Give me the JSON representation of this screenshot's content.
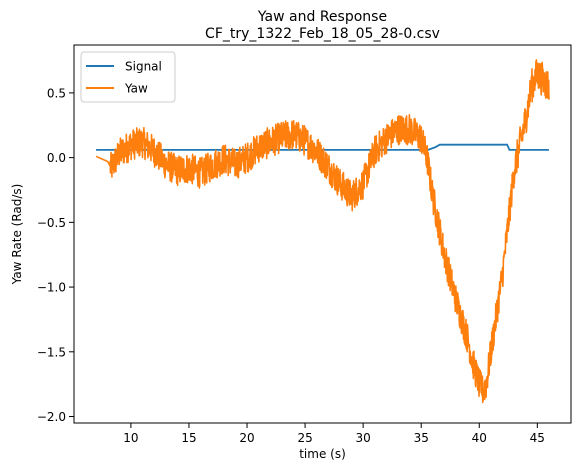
{
  "chart_data": {
    "type": "line",
    "title": "Yaw and Response",
    "subtitle": "CF_try_1322_Feb_18_05_28-0.csv",
    "xlabel": "time (s)",
    "ylabel": "Yaw Rate (Rad/s)",
    "xlim": [
      5.1,
      47.9
    ],
    "ylim": [
      -2.05,
      0.87
    ],
    "xticks": [
      10,
      15,
      20,
      25,
      30,
      35,
      40,
      45
    ],
    "yticks": [
      0.5,
      0.0,
      -0.5,
      -1.0,
      -1.5,
      -2.0
    ],
    "xtick_labels": [
      "10",
      "15",
      "20",
      "25",
      "30",
      "35",
      "40",
      "45"
    ],
    "ytick_labels": [
      "0.5",
      "0.0",
      "−0.5",
      "−1.0",
      "−1.5",
      "−2.0"
    ],
    "legend_position": "top-left",
    "grid": false,
    "series": [
      {
        "name": "Signal",
        "color": "#1f77b4",
        "x": [
          7.0,
          8.0,
          12.0,
          20.0,
          28.0,
          35.0,
          35.6,
          36.2,
          36.6,
          37.0,
          40.0,
          42.4,
          42.6,
          43.0,
          46.0
        ],
        "y": [
          0.06,
          0.06,
          0.06,
          0.06,
          0.06,
          0.06,
          0.06,
          0.08,
          0.1,
          0.1,
          0.1,
          0.1,
          0.06,
          0.06,
          0.06
        ]
      },
      {
        "name": "Yaw",
        "color": "#ff7f0e",
        "x": [
          7.0,
          8.0,
          8.3,
          9.0,
          10.0,
          11.0,
          12.0,
          13.0,
          14.0,
          15.0,
          16.0,
          17.0,
          18.0,
          19.0,
          20.0,
          21.0,
          22.0,
          23.0,
          24.0,
          25.0,
          26.0,
          27.0,
          28.0,
          29.0,
          30.0,
          31.0,
          32.0,
          33.0,
          34.0,
          35.0,
          35.5,
          36.0,
          37.0,
          38.0,
          39.0,
          39.5,
          40.0,
          40.3,
          40.6,
          41.0,
          42.0,
          43.0,
          44.0,
          44.5,
          45.0,
          45.5,
          46.0
        ],
        "y": [
          0.01,
          -0.03,
          -0.08,
          0.03,
          0.1,
          0.12,
          0.05,
          -0.05,
          -0.1,
          -0.08,
          -0.12,
          -0.06,
          -0.01,
          -0.05,
          0.0,
          0.08,
          0.12,
          0.16,
          0.18,
          0.13,
          0.05,
          -0.07,
          -0.2,
          -0.3,
          -0.2,
          0.05,
          0.15,
          0.22,
          0.22,
          0.15,
          0.0,
          -0.3,
          -0.75,
          -1.1,
          -1.4,
          -1.6,
          -1.75,
          -1.8,
          -1.75,
          -1.5,
          -0.9,
          -0.1,
          0.3,
          0.55,
          0.65,
          0.6,
          0.55
        ],
        "noise_amplitude": 0.12
      }
    ]
  }
}
